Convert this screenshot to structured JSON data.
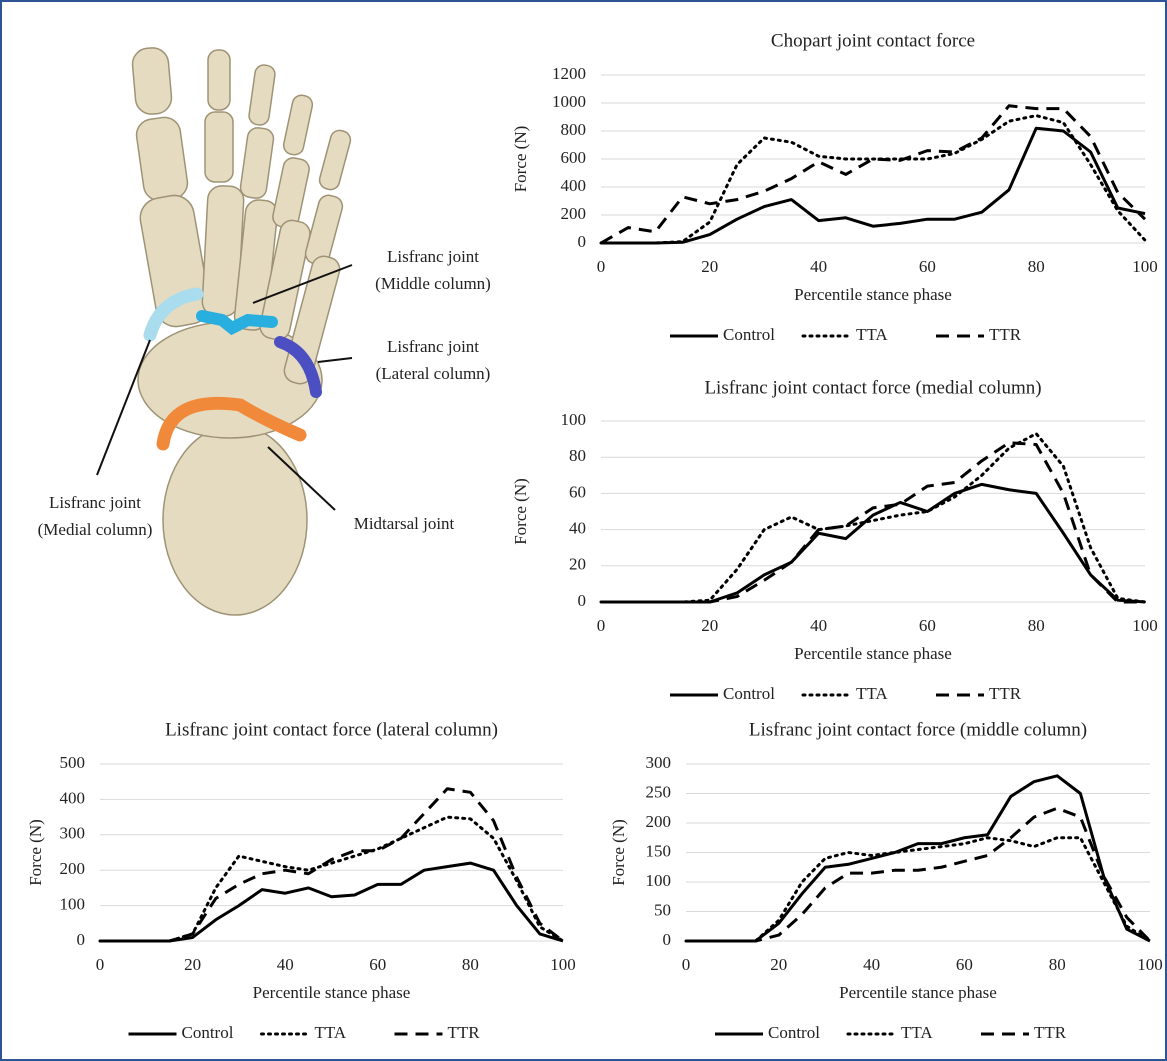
{
  "diagram": {
    "labels": [
      {
        "lines": [
          "Lisfranc joint",
          "(Middle column)"
        ]
      },
      {
        "lines": [
          "Lisfranc joint",
          "(Lateral column)"
        ]
      },
      {
        "lines": [
          "Lisfranc joint",
          "(Medial column)"
        ]
      },
      {
        "lines": [
          "Midtarsal joint"
        ]
      }
    ]
  },
  "chart_data": [
    {
      "type": "line",
      "title": "Chopart joint contact force",
      "x_label": "Percentile stance phase",
      "y_label": "Force (N)",
      "x": [
        0,
        5,
        10,
        15,
        20,
        25,
        30,
        35,
        40,
        45,
        50,
        55,
        60,
        65,
        70,
        75,
        80,
        85,
        90,
        95,
        100
      ],
      "series": [
        {
          "name": "Control",
          "color": "#000000",
          "style": "solid",
          "values": [
            0,
            0,
            0,
            5,
            60,
            170,
            260,
            310,
            160,
            180,
            120,
            140,
            170,
            170,
            220,
            380,
            820,
            800,
            650,
            250,
            210
          ]
        },
        {
          "name": "TTA",
          "color": "#000000",
          "style": "dotted",
          "values": [
            0,
            0,
            0,
            10,
            150,
            560,
            750,
            720,
            620,
            600,
            600,
            600,
            600,
            640,
            740,
            870,
            910,
            860,
            560,
            230,
            20
          ]
        },
        {
          "name": "TTR",
          "color": "#000000",
          "style": "dashed",
          "values": [
            0,
            110,
            80,
            330,
            280,
            310,
            370,
            460,
            580,
            490,
            600,
            590,
            660,
            650,
            750,
            980,
            960,
            960,
            760,
            360,
            170
          ]
        }
      ],
      "xlim": [
        0,
        100
      ],
      "xticks": [
        0,
        20,
        40,
        60,
        80,
        100
      ],
      "ylim": [
        0,
        1200
      ],
      "yticks": [
        0,
        200,
        400,
        600,
        800,
        1000,
        1200
      ],
      "grid": true,
      "legend": "bottom"
    },
    {
      "type": "line",
      "title": "Lisfranc joint contact force (medial column)",
      "x_label": "Percentile stance phase",
      "y_label": "Force (N)",
      "x": [
        0,
        5,
        10,
        15,
        20,
        25,
        30,
        35,
        40,
        45,
        50,
        55,
        60,
        65,
        70,
        75,
        80,
        85,
        90,
        95,
        100
      ],
      "series": [
        {
          "name": "Control",
          "color": "#000000",
          "style": "solid",
          "values": [
            0,
            0,
            0,
            0,
            0,
            5,
            15,
            22,
            38,
            35,
            48,
            55,
            50,
            60,
            65,
            62,
            60,
            38,
            15,
            1,
            0
          ]
        },
        {
          "name": "TTA",
          "color": "#000000",
          "style": "dotted",
          "values": [
            0,
            0,
            0,
            0,
            1,
            18,
            40,
            47,
            40,
            42,
            45,
            48,
            50,
            58,
            70,
            85,
            93,
            75,
            30,
            2,
            0
          ]
        },
        {
          "name": "TTR",
          "color": "#000000",
          "style": "dashed",
          "values": [
            0,
            0,
            0,
            0,
            0,
            3,
            12,
            22,
            40,
            42,
            52,
            54,
            64,
            66,
            78,
            88,
            87,
            60,
            15,
            0,
            0
          ]
        }
      ],
      "xlim": [
        0,
        100
      ],
      "xticks": [
        0,
        20,
        40,
        60,
        80,
        100
      ],
      "ylim": [
        0,
        100
      ],
      "yticks": [
        0,
        20,
        40,
        60,
        80,
        100
      ],
      "grid": true,
      "legend": "bottom"
    },
    {
      "type": "line",
      "title": "Lisfranc joint contact force (lateral column)",
      "x_label": "Percentile stance phase",
      "y_label": "Force (N)",
      "x": [
        0,
        5,
        10,
        15,
        20,
        25,
        30,
        35,
        40,
        45,
        50,
        55,
        60,
        65,
        70,
        75,
        80,
        85,
        90,
        95,
        100
      ],
      "series": [
        {
          "name": "Control",
          "color": "#000000",
          "style": "solid",
          "values": [
            0,
            0,
            0,
            0,
            10,
            60,
            100,
            145,
            135,
            150,
            125,
            130,
            160,
            160,
            200,
            210,
            220,
            200,
            100,
            20,
            0
          ]
        },
        {
          "name": "TTA",
          "color": "#000000",
          "style": "dotted",
          "values": [
            0,
            0,
            0,
            0,
            20,
            150,
            240,
            225,
            210,
            200,
            220,
            240,
            260,
            290,
            320,
            350,
            345,
            290,
            170,
            40,
            0
          ]
        },
        {
          "name": "TTR",
          "color": "#000000",
          "style": "dashed",
          "values": [
            0,
            0,
            0,
            0,
            20,
            120,
            160,
            190,
            200,
            190,
            230,
            255,
            255,
            290,
            360,
            430,
            420,
            340,
            180,
            50,
            0
          ]
        }
      ],
      "xlim": [
        0,
        100
      ],
      "xticks": [
        0,
        20,
        40,
        60,
        80,
        100
      ],
      "ylim": [
        0,
        500
      ],
      "yticks": [
        0,
        100,
        200,
        300,
        400,
        500
      ],
      "grid": true,
      "legend": "bottom"
    },
    {
      "type": "line",
      "title": "Lisfranc joint contact force (middle column)",
      "x_label": "Percentile stance phase",
      "y_label": "Force (N)",
      "x": [
        0,
        5,
        10,
        15,
        20,
        25,
        30,
        35,
        40,
        45,
        50,
        55,
        60,
        65,
        70,
        75,
        80,
        85,
        90,
        95,
        100
      ],
      "series": [
        {
          "name": "Control",
          "color": "#000000",
          "style": "solid",
          "values": [
            0,
            0,
            0,
            0,
            30,
            80,
            125,
            130,
            140,
            150,
            165,
            165,
            175,
            180,
            245,
            270,
            280,
            250,
            110,
            20,
            0
          ]
        },
        {
          "name": "TTA",
          "color": "#000000",
          "style": "dotted",
          "values": [
            0,
            0,
            0,
            0,
            35,
            100,
            140,
            150,
            145,
            150,
            155,
            160,
            165,
            175,
            170,
            160,
            175,
            175,
            100,
            25,
            0
          ]
        },
        {
          "name": "TTR",
          "color": "#000000",
          "style": "dashed",
          "values": [
            0,
            0,
            0,
            0,
            10,
            45,
            90,
            115,
            115,
            120,
            120,
            125,
            135,
            145,
            175,
            210,
            225,
            210,
            110,
            40,
            0
          ]
        }
      ],
      "xlim": [
        0,
        100
      ],
      "xticks": [
        0,
        20,
        40,
        60,
        80,
        100
      ],
      "ylim": [
        0,
        300
      ],
      "yticks": [
        0,
        50,
        100,
        150,
        200,
        250,
        300
      ],
      "grid": true,
      "legend": "bottom"
    }
  ]
}
